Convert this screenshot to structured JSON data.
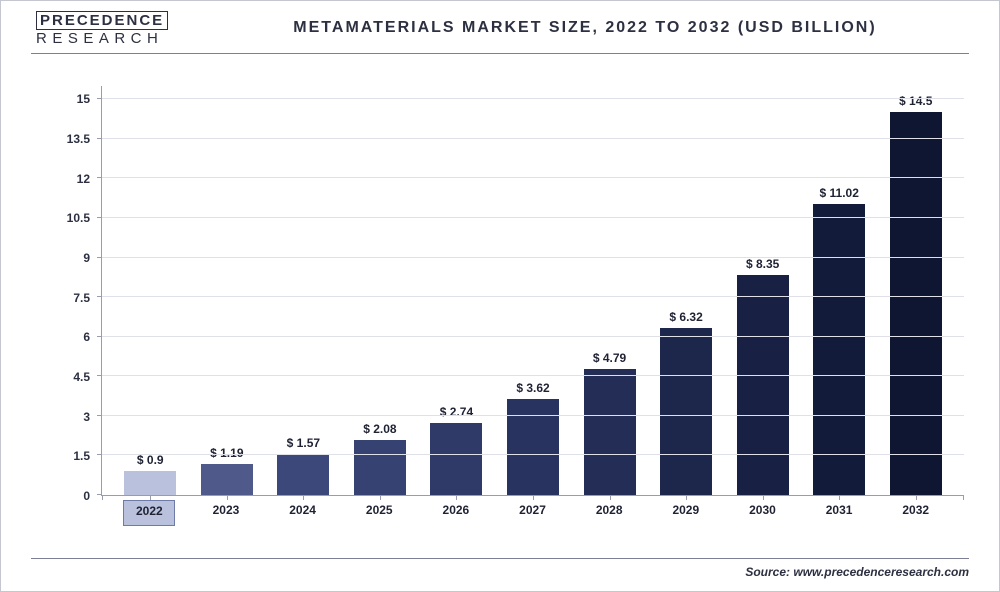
{
  "logo": {
    "top": "PRECEDENCE",
    "bottom": "RESEARCH"
  },
  "chart": {
    "type": "bar",
    "title": "METAMATERIALS MARKET SIZE, 2022 TO 2032 (USD BILLION)",
    "source": "Source: www.precedenceresearch.com",
    "ylim": [
      0,
      15.5
    ],
    "yticks": [
      0,
      1.5,
      3,
      4.5,
      6,
      7.5,
      9,
      10.5,
      12,
      13.5,
      15
    ],
    "background_color": "#ffffff",
    "grid_color": "#dfe0e8",
    "axis_color": "#999cae",
    "label_fontsize": 12,
    "title_fontsize": 16,
    "highlight_category": "2022",
    "categories": [
      "2022",
      "2023",
      "2024",
      "2025",
      "2026",
      "2027",
      "2028",
      "2029",
      "2030",
      "2031",
      "2032"
    ],
    "values": [
      0.9,
      1.19,
      1.57,
      2.08,
      2.74,
      3.62,
      4.79,
      6.32,
      8.35,
      11.02,
      14.5
    ],
    "value_labels": [
      "$ 0.9",
      "$ 1.19",
      "$ 1.57",
      "$ 2.08",
      "$ 2.74",
      "$ 3.62",
      "$ 4.79",
      "$ 6.32",
      "$ 8.35",
      "$ 11.02",
      "$ 14.5"
    ],
    "bar_colors": [
      "#b9c1dd",
      "#4f5a8a",
      "#3c4879",
      "#364271",
      "#2f3a68",
      "#28345f",
      "#232d55",
      "#1d274c",
      "#182143",
      "#131b3a",
      "#0e1631"
    ],
    "bar_width": 0.68
  }
}
